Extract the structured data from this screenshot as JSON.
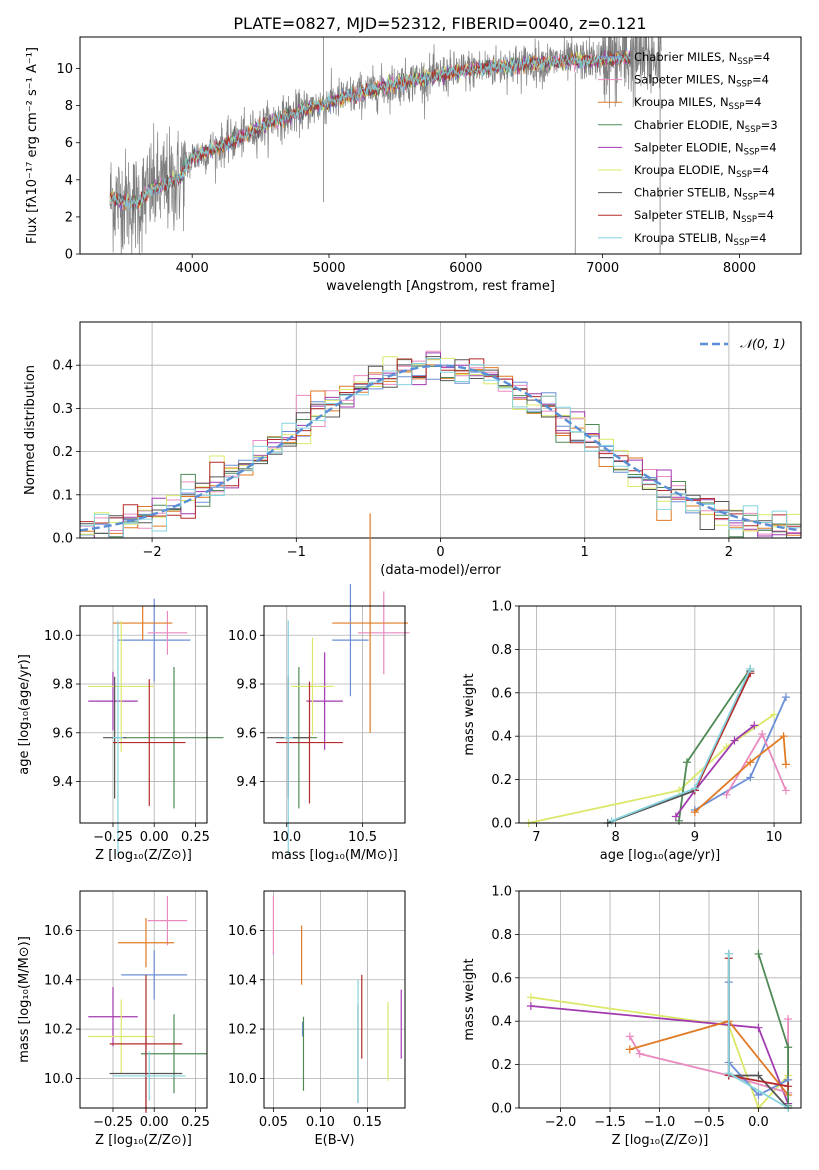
{
  "figure": {
    "title": "PLATE=0827, MJD=52312, FIBERID=0040, z=0.121",
    "colors": {
      "Chabrier MILES": "#6b8fd6",
      "Salpeter MILES": "#e98ac0",
      "Kroupa MILES": "#e07b25",
      "Chabrier ELODIE": "#4f8a55",
      "Salpeter ELODIE": "#a23ab0",
      "Kroupa ELODIE": "#dbe86a",
      "Chabrier STELIB": "#555555",
      "Salpeter STELIB": "#b52b2b",
      "Kroupa STELIB": "#86d4df"
    }
  },
  "chart_data": [
    {
      "id": "spectrum",
      "type": "line",
      "xlabel": "wavelength [Angstrom, rest frame]",
      "ylabel": "Flux [fλ10⁻¹⁷ erg cm⁻² s⁻¹ A⁻¹]",
      "xlim": [
        3180,
        8450
      ],
      "ylim": [
        0,
        11.7
      ],
      "xticks": [
        4000,
        5000,
        6000,
        7000,
        8000
      ],
      "yticks": [
        0,
        2,
        4,
        6,
        8,
        10
      ],
      "grid": false,
      "legend_position": "top-right",
      "legend": [
        {
          "label": "Chabrier MILES, N",
          "sub": "SSP",
          "tail": "=4",
          "key": "Chabrier MILES"
        },
        {
          "label": "Salpeter MILES, N",
          "sub": "SSP",
          "tail": "=4",
          "key": "Salpeter MILES"
        },
        {
          "label": "Kroupa MILES, N",
          "sub": "SSP",
          "tail": "=4",
          "key": "Kroupa MILES"
        },
        {
          "label": "Chabrier ELODIE, N",
          "sub": "SSP",
          "tail": "=3",
          "key": "Chabrier ELODIE"
        },
        {
          "label": "Salpeter ELODIE, N",
          "sub": "SSP",
          "tail": "=4",
          "key": "Salpeter ELODIE"
        },
        {
          "label": "Kroupa ELODIE, N",
          "sub": "SSP",
          "tail": "=4",
          "key": "Kroupa ELODIE"
        },
        {
          "label": "Chabrier STELIB, N",
          "sub": "SSP",
          "tail": "=4",
          "key": "Chabrier STELIB"
        },
        {
          "label": "Salpeter STELIB, N",
          "sub": "SSP",
          "tail": "=4",
          "key": "Salpeter STELIB"
        },
        {
          "label": "Kroupa STELIB, N",
          "sub": "SSP",
          "tail": "=4",
          "key": "Kroupa STELIB"
        }
      ],
      "data_color": "#7f7f7f",
      "model_shape": [
        [
          3400,
          3.0
        ],
        [
          3600,
          2.7
        ],
        [
          3700,
          3.5
        ],
        [
          3900,
          4.0
        ],
        [
          4000,
          5.2
        ],
        [
          4300,
          6.1
        ],
        [
          4600,
          7.2
        ],
        [
          5000,
          8.2
        ],
        [
          5500,
          9.2
        ],
        [
          6000,
          9.9
        ],
        [
          6500,
          10.3
        ],
        [
          7000,
          10.5
        ],
        [
          7200,
          10.6
        ]
      ],
      "model_end": 7200,
      "data_end": 7430,
      "spikes": [
        {
          "x": 4960,
          "y0": 2.8,
          "y1": 11.8
        },
        {
          "x": 6800,
          "y0": 0.0,
          "y1": 9.8
        },
        {
          "x": 7420,
          "y0": 0.0,
          "y1": 11.2
        }
      ]
    },
    {
      "id": "residual_hist",
      "type": "histogram",
      "xlabel": "(data-model)/error",
      "ylabel": "Normed distribution",
      "xlim": [
        -2.5,
        2.5
      ],
      "ylim": [
        0,
        0.5
      ],
      "xticks": [
        -2,
        -1,
        0,
        1,
        2
      ],
      "yticks": [
        0.0,
        0.1,
        0.2,
        0.3,
        0.4
      ],
      "grid": true,
      "legend_position": "top-right",
      "reference": {
        "label": "𝒩(0, 1)",
        "color": "#5a8fd6",
        "sigma": 1
      },
      "bin_width": 0.1,
      "series_keys": [
        "Chabrier MILES",
        "Salpeter MILES",
        "Kroupa MILES",
        "Chabrier ELODIE",
        "Salpeter ELODIE",
        "Kroupa ELODIE",
        "Chabrier STELIB",
        "Salpeter STELIB",
        "Kroupa STELIB"
      ]
    },
    {
      "id": "z_age",
      "type": "errorbar",
      "xlabel": "Z [log₁₀(Z/Z⊙)]",
      "ylabel": "age  [log₁₀(age/yr)]",
      "xlim": [
        -0.45,
        0.32
      ],
      "ylim": [
        9.23,
        10.12
      ],
      "xticks": [
        -0.25,
        0.0,
        0.25
      ],
      "xticklabels": [
        "−0.25",
        "0.00",
        "0.25"
      ],
      "yticks": [
        9.4,
        9.6,
        9.8,
        10.0
      ],
      "grid": true,
      "points": [
        {
          "key": "Chabrier MILES",
          "x": 0.0,
          "xerr": 0.22,
          "y": 9.98,
          "yerr": 0.17
        },
        {
          "key": "Salpeter MILES",
          "x": 0.08,
          "xerr": 0.12,
          "y": 10.01,
          "yerr": 0.09
        },
        {
          "key": "Kroupa MILES",
          "x": -0.07,
          "xerr": 0.18,
          "y": 10.05,
          "yerr": 0.07
        },
        {
          "key": "Chabrier ELODIE",
          "x": 0.12,
          "xerr": 0.3,
          "y": 9.58,
          "yerr": 0.29
        },
        {
          "key": "Salpeter ELODIE",
          "x": -0.25,
          "xerr": 0.15,
          "y": 9.73,
          "yerr": 0.12
        },
        {
          "key": "Kroupa ELODIE",
          "x": -0.2,
          "xerr": 0.2,
          "y": 9.79,
          "yerr": 0.27
        },
        {
          "key": "Chabrier STELIB",
          "x": -0.24,
          "xerr": 0.07,
          "y": 9.58,
          "yerr": 0.25
        },
        {
          "key": "Salpeter STELIB",
          "x": -0.03,
          "xerr": 0.22,
          "y": 9.56,
          "yerr": 0.26
        },
        {
          "key": "Kroupa STELIB",
          "x": -0.22,
          "xerr": 0.03,
          "y": 9.58,
          "yerr": 0.48
        }
      ]
    },
    {
      "id": "mass_age",
      "type": "errorbar",
      "xlabel": "mass [log₁₀(M/M⊙)]",
      "ylabel": "",
      "xlim": [
        9.85,
        10.78
      ],
      "ylim": [
        9.23,
        10.12
      ],
      "xticks": [
        10.0,
        10.5
      ],
      "yticks": [
        9.4,
        9.6,
        9.8,
        10.0
      ],
      "grid": true,
      "points": [
        {
          "key": "Chabrier MILES",
          "x": 10.42,
          "xerr": 0.12,
          "y": 9.98,
          "yerr": 0.23
        },
        {
          "key": "Salpeter MILES",
          "x": 10.64,
          "xerr": 0.17,
          "y": 10.01,
          "yerr": 0.17
        },
        {
          "key": "Kroupa MILES",
          "x": 10.55,
          "xerr": 0.25,
          "y": 10.05,
          "yerr": 0.45
        },
        {
          "key": "Chabrier ELODIE",
          "x": 10.08,
          "xerr": 0.12,
          "y": 9.58,
          "yerr": 0.29
        },
        {
          "key": "Salpeter ELODIE",
          "x": 10.25,
          "xerr": 0.12,
          "y": 9.73,
          "yerr": 0.2
        },
        {
          "key": "Kroupa ELODIE",
          "x": 10.17,
          "xerr": 0.14,
          "y": 9.79,
          "yerr": 0.2
        },
        {
          "key": "Chabrier STELIB",
          "x": 10.01,
          "xerr": 0.14,
          "y": 9.58,
          "yerr": 0.25
        },
        {
          "key": "Salpeter STELIB",
          "x": 10.15,
          "xerr": 0.22,
          "y": 9.56,
          "yerr": 0.25
        },
        {
          "key": "Kroupa STELIB",
          "x": 10.01,
          "xerr": 0.03,
          "y": 9.58,
          "yerr": 0.48
        }
      ]
    },
    {
      "id": "age_weight",
      "type": "line",
      "xlabel": "age  [log₁₀(age/yr)]",
      "ylabel": "mass weight",
      "xlim": [
        6.78,
        10.34
      ],
      "ylim": [
        0.0,
        1.0
      ],
      "xticks": [
        7,
        8,
        9,
        10
      ],
      "yticks": [
        0.0,
        0.2,
        0.4,
        0.6,
        0.8,
        1.0
      ],
      "grid": true,
      "series": [
        {
          "key": "Kroupa ELODIE",
          "x": [
            6.9,
            8.8,
            9.4,
            10.0
          ],
          "y": [
            0.0,
            0.15,
            0.35,
            0.5
          ]
        },
        {
          "key": "Chabrier MILES",
          "x": [
            9.0,
            9.7,
            10.15
          ],
          "y": [
            0.06,
            0.21,
            0.58
          ]
        },
        {
          "key": "Salpeter MILES",
          "x": [
            9.4,
            9.85,
            10.15
          ],
          "y": [
            0.13,
            0.41,
            0.15
          ]
        },
        {
          "key": "Kroupa MILES",
          "x": [
            9.0,
            9.7,
            10.12,
            10.15
          ],
          "y": [
            0.05,
            0.28,
            0.4,
            0.27
          ]
        },
        {
          "key": "Chabrier ELODIE",
          "x": [
            8.8,
            8.9,
            9.7
          ],
          "y": [
            0.01,
            0.28,
            0.71
          ]
        },
        {
          "key": "Salpeter ELODIE",
          "x": [
            8.76,
            9.0,
            9.5,
            9.75
          ],
          "y": [
            0.03,
            0.15,
            0.38,
            0.45
          ]
        },
        {
          "key": "Chabrier STELIB",
          "x": [
            7.9,
            9.0,
            9.7
          ],
          "y": [
            0.0,
            0.15,
            0.7
          ]
        },
        {
          "key": "Salpeter STELIB",
          "x": [
            9.0,
            9.7
          ],
          "y": [
            0.15,
            0.69
          ]
        },
        {
          "key": "Kroupa STELIB",
          "x": [
            7.95,
            9.0,
            9.7
          ],
          "y": [
            0.01,
            0.16,
            0.71
          ]
        }
      ]
    },
    {
      "id": "z_mass",
      "type": "errorbar",
      "xlabel": "Z [log₁₀(Z/Z⊙)]",
      "ylabel": "mass [log₁₀(M/M⊙)]",
      "xlim": [
        -0.45,
        0.32
      ],
      "ylim": [
        9.88,
        10.76
      ],
      "xticks": [
        -0.25,
        0.0,
        0.25
      ],
      "xticklabels": [
        "−0.25",
        "0.00",
        "0.25"
      ],
      "yticks": [
        10.0,
        10.2,
        10.4,
        10.6
      ],
      "grid": true,
      "points": [
        {
          "key": "Chabrier MILES",
          "x": 0.0,
          "xerr": 0.2,
          "y": 10.42,
          "yerr": 0.1
        },
        {
          "key": "Salpeter MILES",
          "x": 0.08,
          "xerr": 0.12,
          "y": 10.64,
          "yerr": 0.1
        },
        {
          "key": "Kroupa MILES",
          "x": -0.05,
          "xerr": 0.17,
          "y": 10.55,
          "yerr": 0.1
        },
        {
          "key": "Chabrier ELODIE",
          "x": 0.12,
          "xerr": 0.2,
          "y": 10.1,
          "yerr": 0.16
        },
        {
          "key": "Salpeter ELODIE",
          "x": -0.25,
          "xerr": 0.15,
          "y": 10.25,
          "yerr": 0.12
        },
        {
          "key": "Kroupa ELODIE",
          "x": -0.2,
          "xerr": 0.2,
          "y": 10.17,
          "yerr": 0.15
        },
        {
          "key": "Chabrier STELIB",
          "x": -0.05,
          "xerr": 0.22,
          "y": 10.02,
          "yerr": 0.15
        },
        {
          "key": "Salpeter STELIB",
          "x": -0.05,
          "xerr": 0.22,
          "y": 10.14,
          "yerr": 0.28
        },
        {
          "key": "Kroupa STELIB",
          "x": -0.03,
          "xerr": 0.22,
          "y": 10.01,
          "yerr": 0.1
        }
      ]
    },
    {
      "id": "ebv_mass",
      "type": "errorbar",
      "xlabel": "E(B-V)",
      "ylabel": "",
      "xlim": [
        0.04,
        0.19
      ],
      "ylim": [
        9.88,
        10.76
      ],
      "xticks": [
        0.05,
        0.1,
        0.15
      ],
      "xticklabels": [
        "0.05",
        "0.10",
        "0.15"
      ],
      "yticks": [
        10.0,
        10.2,
        10.4,
        10.6
      ],
      "grid": true,
      "points": [
        {
          "key": "Chabrier MILES",
          "x": 0.081,
          "xerr": 0,
          "y": 10.2,
          "yerr": 0.03
        },
        {
          "key": "Salpeter MILES",
          "x": 0.05,
          "xerr": 0,
          "y": 10.62,
          "yerr": 0.12
        },
        {
          "key": "Kroupa MILES",
          "x": 0.08,
          "xerr": 0,
          "y": 10.5,
          "yerr": 0.12
        },
        {
          "key": "Chabrier ELODIE",
          "x": 0.082,
          "xerr": 0,
          "y": 10.1,
          "yerr": 0.15
        },
        {
          "key": "Salpeter ELODIE",
          "x": 0.186,
          "xerr": 0,
          "y": 10.22,
          "yerr": 0.14
        },
        {
          "key": "Kroupa ELODIE",
          "x": 0.172,
          "xerr": 0,
          "y": 10.15,
          "yerr": 0.16
        },
        {
          "key": "Chabrier STELIB",
          "x": 0.14,
          "xerr": 0,
          "y": 10.1,
          "yerr": 0.2
        },
        {
          "key": "Salpeter STELIB",
          "x": 0.144,
          "xerr": 0,
          "y": 10.25,
          "yerr": 0.17
        },
        {
          "key": "Kroupa STELIB",
          "x": 0.14,
          "xerr": 0,
          "y": 10.15,
          "yerr": 0.25
        }
      ]
    },
    {
      "id": "z_weight",
      "type": "line",
      "xlabel": "Z [log₁₀(Z/Z⊙)]",
      "ylabel": "mass weight",
      "xlim": [
        -2.42,
        0.43
      ],
      "ylim": [
        0.0,
        1.0
      ],
      "xticks": [
        -2.0,
        -1.5,
        -1.0,
        -0.5,
        0.0
      ],
      "xticklabels": [
        "−2.0",
        "−1.5",
        "−1.0",
        "−0.5",
        "0.0"
      ],
      "yticks": [
        0.0,
        0.2,
        0.4,
        0.6,
        0.8,
        1.0
      ],
      "grid": true,
      "series": [
        {
          "key": "Kroupa ELODIE",
          "x": [
            -2.3,
            -0.3,
            0.0,
            0.3
          ],
          "y": [
            0.51,
            0.38,
            0.0,
            0.15
          ]
        },
        {
          "key": "Salpeter ELODIE",
          "x": [
            -2.3,
            0.0,
            0.3
          ],
          "y": [
            0.47,
            0.37,
            0.02
          ]
        },
        {
          "key": "Salpeter MILES",
          "x": [
            -1.3,
            -1.2,
            -0.3,
            0.3,
            0.3
          ],
          "y": [
            0.33,
            0.25,
            0.15,
            0.07,
            0.41
          ]
        },
        {
          "key": "Kroupa MILES",
          "x": [
            -1.3,
            -0.3,
            0.3,
            0.3
          ],
          "y": [
            0.27,
            0.4,
            0.06,
            0.13
          ]
        },
        {
          "key": "Chabrier ELODIE",
          "x": [
            0.0,
            0.3,
            0.3
          ],
          "y": [
            0.71,
            0.28,
            0.01
          ]
        },
        {
          "key": "Chabrier MILES",
          "x": [
            -0.3,
            -0.3,
            0.0,
            0.3
          ],
          "y": [
            0.58,
            0.21,
            0.06,
            0.13
          ]
        },
        {
          "key": "Chabrier STELIB",
          "x": [
            -0.3,
            -0.3,
            0.0,
            0.3
          ],
          "y": [
            0.71,
            0.15,
            0.15,
            0.0
          ]
        },
        {
          "key": "Salpeter STELIB",
          "x": [
            -0.3,
            -0.3,
            0.3
          ],
          "y": [
            0.69,
            0.15,
            0.1
          ]
        },
        {
          "key": "Kroupa STELIB",
          "x": [
            -0.3,
            -0.3,
            0.3
          ],
          "y": [
            0.71,
            0.16,
            0.0
          ]
        }
      ]
    }
  ]
}
